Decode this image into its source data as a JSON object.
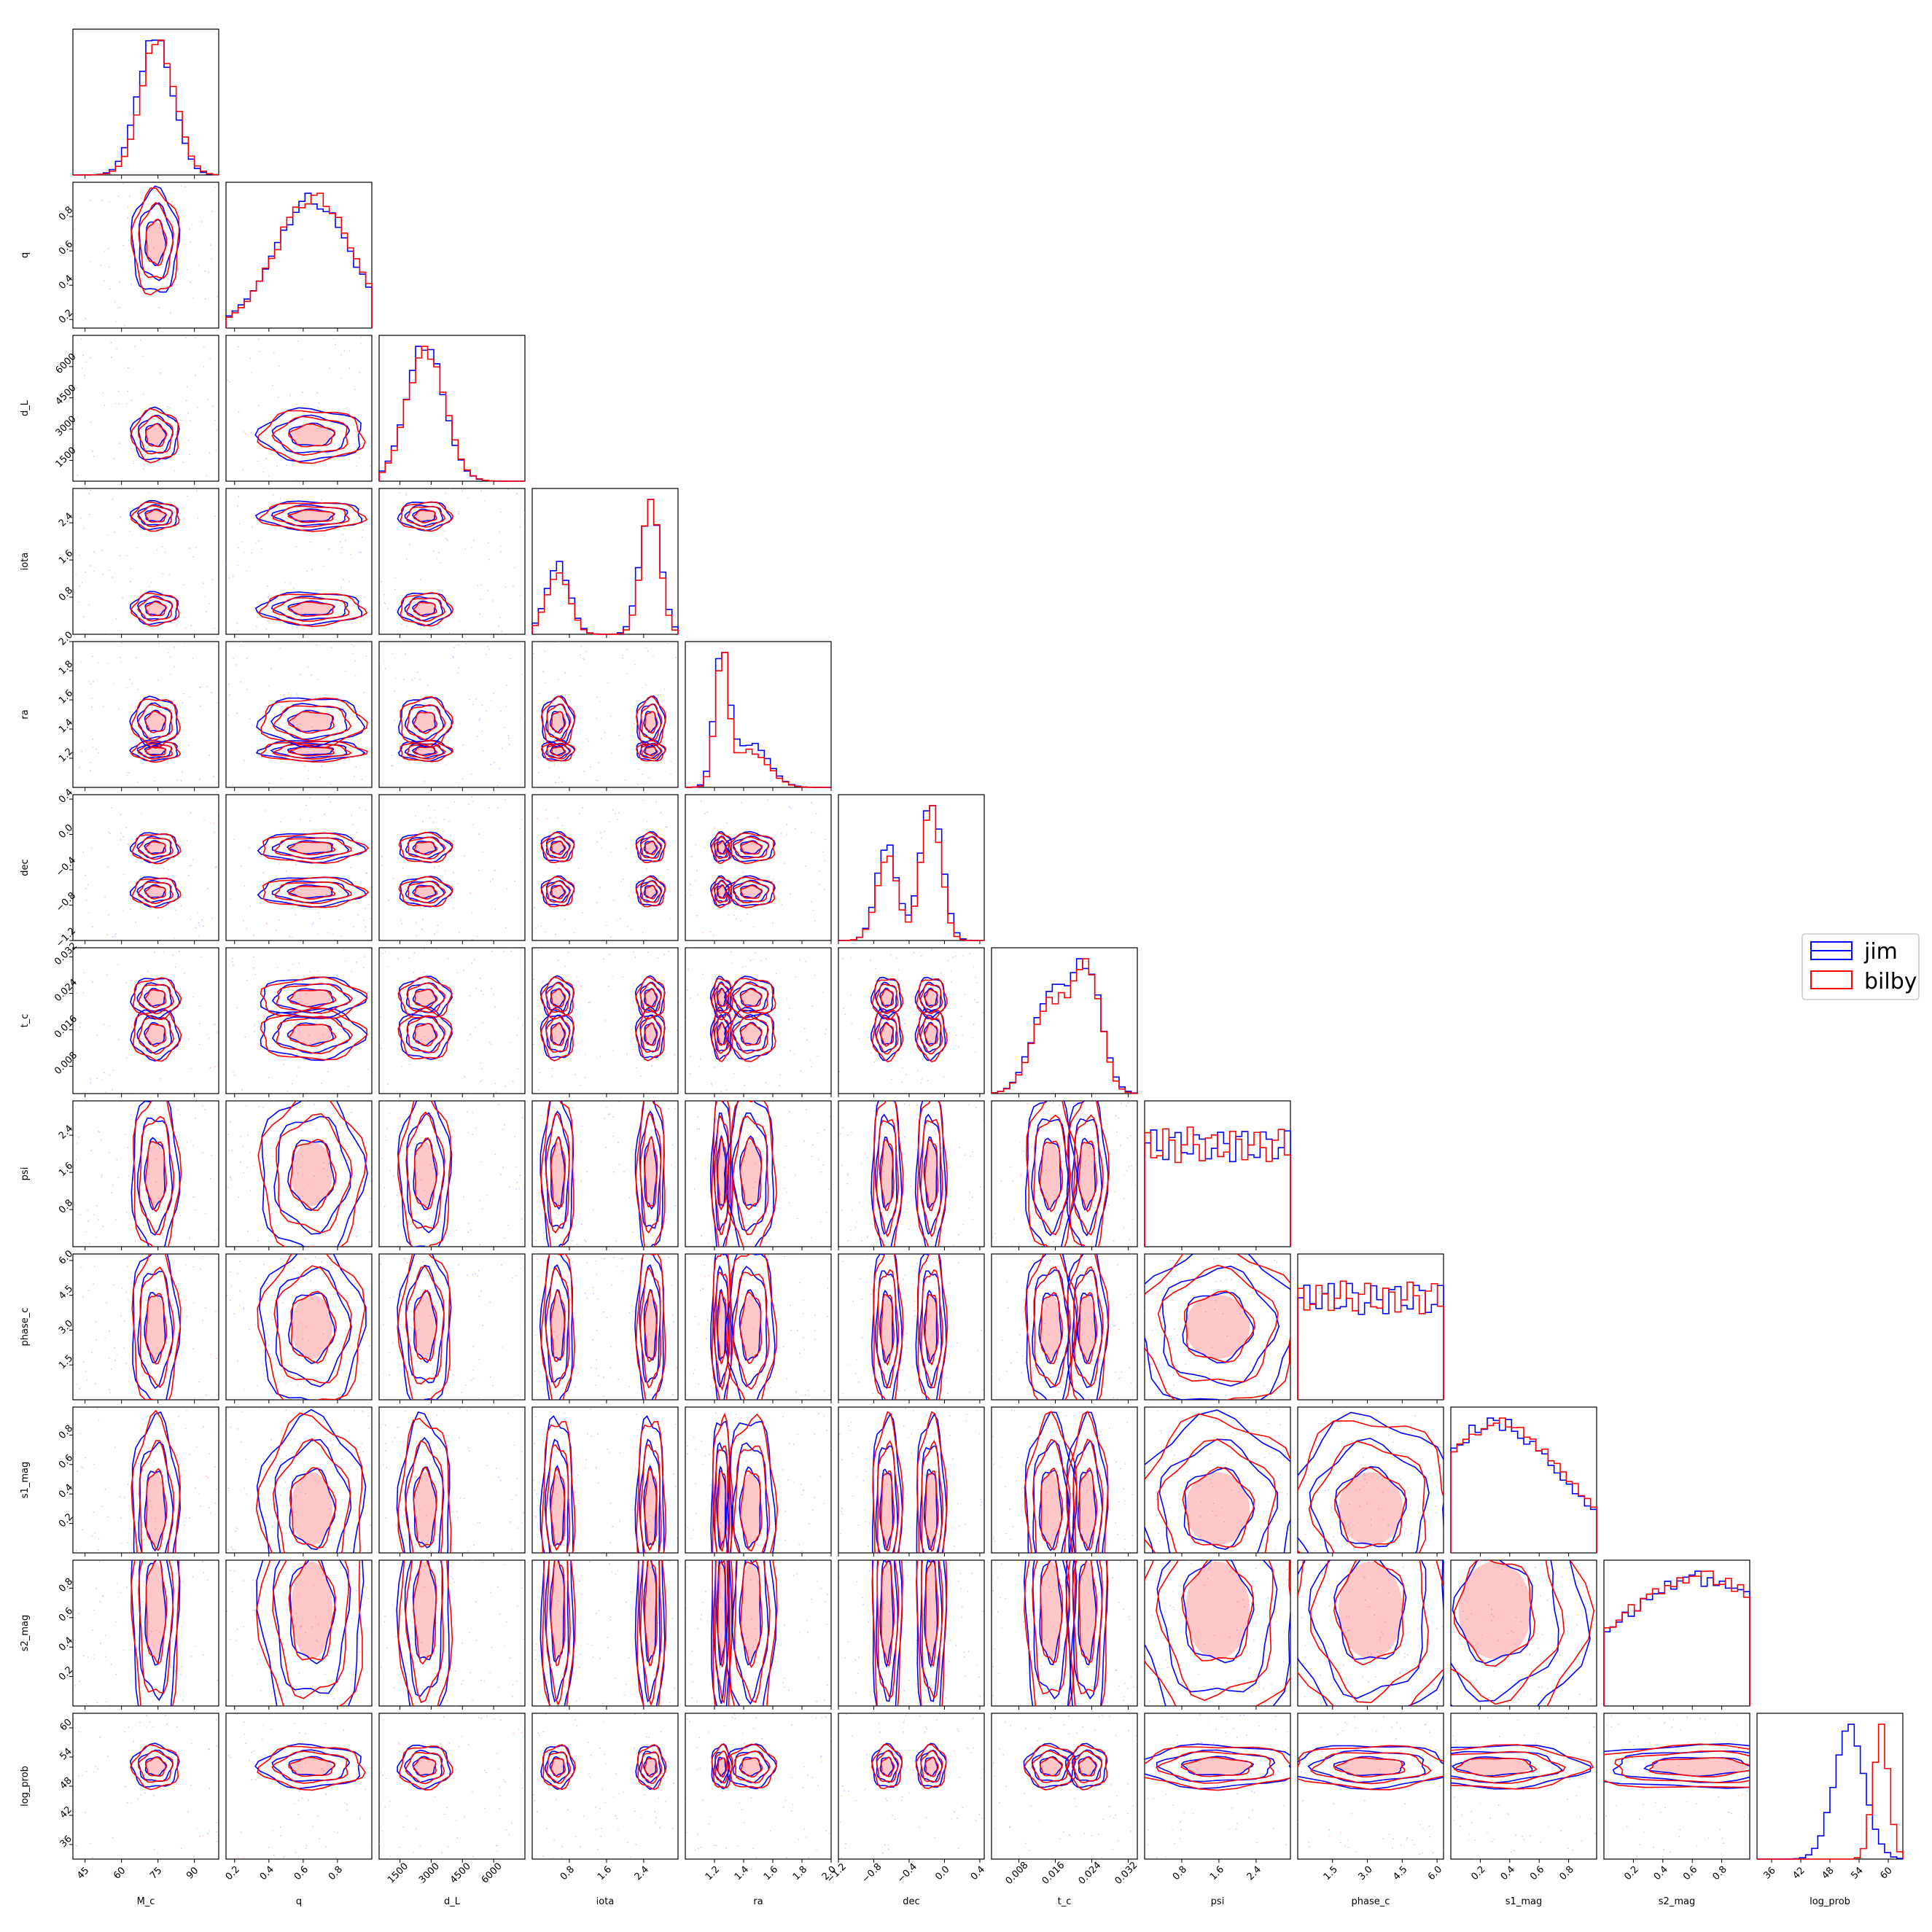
{
  "chart_data": {
    "type": "corner",
    "title": "",
    "legend": {
      "placement": "right",
      "entries": [
        {
          "name": "jim",
          "color": "#0000ff"
        },
        {
          "name": "bilby",
          "color": "#ff0000"
        }
      ]
    },
    "parameters": [
      {
        "name": "M_c",
        "range": [
          40,
          100
        ],
        "ticks": [
          "45",
          "60",
          "75",
          "90"
        ],
        "tickvals": [
          45,
          60,
          75,
          90
        ],
        "modes_a": [
          {
            "mu": 74,
            "sigma": 7,
            "w": 1
          }
        ],
        "modes_b": [
          {
            "mu": 75,
            "sigma": 7,
            "w": 1
          }
        ]
      },
      {
        "name": "q",
        "range": [
          0.15,
          1.0
        ],
        "ticks": [
          "0.2",
          "0.4",
          "0.6",
          "0.8"
        ],
        "tickvals": [
          0.2,
          0.4,
          0.6,
          0.8
        ],
        "modes_a": [
          {
            "mu": 0.65,
            "sigma": 0.22,
            "w": 1
          }
        ],
        "modes_b": [
          {
            "mu": 0.66,
            "sigma": 0.22,
            "w": 1
          }
        ]
      },
      {
        "name": "d_L",
        "range": [
          500,
          7500
        ],
        "ticks": [
          "1500",
          "3000",
          "4500",
          "6000"
        ],
        "tickvals": [
          1500,
          3000,
          4500,
          6000
        ],
        "modes_a": [
          {
            "mu": 2700,
            "sigma": 900,
            "w": 1
          }
        ],
        "modes_b": [
          {
            "mu": 2750,
            "sigma": 900,
            "w": 1
          }
        ]
      },
      {
        "name": "iota",
        "range": [
          0.0,
          3.14
        ],
        "ticks": [
          "0.8",
          "1.6",
          "2.4"
        ],
        "tickvals": [
          0.8,
          1.6,
          2.4
        ],
        "modes_a": [
          {
            "mu": 0.55,
            "sigma": 0.25,
            "w": 0.35
          },
          {
            "mu": 2.55,
            "sigma": 0.22,
            "w": 0.65
          }
        ],
        "modes_b": [
          {
            "mu": 0.55,
            "sigma": 0.25,
            "w": 0.32
          },
          {
            "mu": 2.55,
            "sigma": 0.2,
            "w": 0.68
          }
        ]
      },
      {
        "name": "ra",
        "range": [
          1.0,
          2.0
        ],
        "ticks": [
          "1.2",
          "1.4",
          "1.6",
          "1.8",
          "2.0"
        ],
        "tickvals": [
          1.2,
          1.4,
          1.6,
          1.8,
          2.0
        ],
        "modes_a": [
          {
            "mu": 1.25,
            "sigma": 0.05,
            "w": 0.75
          },
          {
            "mu": 1.45,
            "sigma": 0.12,
            "w": 0.25
          }
        ],
        "modes_b": [
          {
            "mu": 1.25,
            "sigma": 0.045,
            "w": 0.78
          },
          {
            "mu": 1.45,
            "sigma": 0.12,
            "w": 0.22
          }
        ]
      },
      {
        "name": "dec",
        "range": [
          -1.2,
          0.45
        ],
        "ticks": [
          "−1.2",
          "−0.8",
          "−0.4",
          "0.0",
          "0.4"
        ],
        "tickvals": [
          -1.2,
          -0.8,
          -0.4,
          0.0,
          0.4
        ],
        "modes_a": [
          {
            "mu": -0.65,
            "sigma": 0.12,
            "w": 0.4
          },
          {
            "mu": -0.15,
            "sigma": 0.12,
            "w": 0.6
          }
        ],
        "modes_b": [
          {
            "mu": -0.65,
            "sigma": 0.12,
            "w": 0.38
          },
          {
            "mu": -0.15,
            "sigma": 0.11,
            "w": 0.62
          }
        ]
      },
      {
        "name": "t_c",
        "range": [
          0.002,
          0.034
        ],
        "ticks": [
          "0.008",
          "0.016",
          "0.024",
          "0.032"
        ],
        "tickvals": [
          0.008,
          0.016,
          0.024,
          0.032
        ],
        "modes_a": [
          {
            "mu": 0.015,
            "sigma": 0.004,
            "w": 0.45
          },
          {
            "mu": 0.023,
            "sigma": 0.0032,
            "w": 0.55
          }
        ],
        "modes_b": [
          {
            "mu": 0.015,
            "sigma": 0.004,
            "w": 0.42
          },
          {
            "mu": 0.023,
            "sigma": 0.003,
            "w": 0.58
          }
        ]
      },
      {
        "name": "psi",
        "range": [
          0.0,
          3.14
        ],
        "ticks": [
          "0.8",
          "1.6",
          "2.4"
        ],
        "tickvals": [
          0.8,
          1.6,
          2.4
        ],
        "uniform": true
      },
      {
        "name": "phase_c",
        "range": [
          0.0,
          6.28
        ],
        "ticks": [
          "1.5",
          "3.0",
          "4.5",
          "6.0"
        ],
        "tickvals": [
          1.5,
          3.0,
          4.5,
          6.0
        ],
        "uniform": true
      },
      {
        "name": "s1_mag",
        "range": [
          0.0,
          0.99
        ],
        "ticks": [
          "0.2",
          "0.4",
          "0.6",
          "0.8"
        ],
        "tickvals": [
          0.2,
          0.4,
          0.6,
          0.8
        ],
        "modes_a": [
          {
            "mu": 0.3,
            "sigma": 0.45,
            "w": 1
          }
        ],
        "modes_b": [
          {
            "mu": 0.32,
            "sigma": 0.45,
            "w": 1
          }
        ]
      },
      {
        "name": "s2_mag",
        "range": [
          0.0,
          0.99
        ],
        "ticks": [
          "0.2",
          "0.4",
          "0.6",
          "0.8"
        ],
        "tickvals": [
          0.2,
          0.4,
          0.6,
          0.8
        ],
        "modes_a": [
          {
            "mu": 0.65,
            "sigma": 0.6,
            "w": 1
          }
        ],
        "modes_b": [
          {
            "mu": 0.65,
            "sigma": 0.6,
            "w": 1
          }
        ]
      },
      {
        "name": "log_prob",
        "range": [
          33,
          63
        ],
        "ticks": [
          "36",
          "42",
          "48",
          "54",
          "60"
        ],
        "tickvals": [
          36,
          42,
          48,
          54,
          60
        ],
        "modes_a": [
          {
            "mu": 52,
            "sigma": 3.2,
            "w": 1
          }
        ],
        "modes_b": [
          {
            "mu": 58.5,
            "sigma": 1.6,
            "w": 1
          }
        ]
      }
    ],
    "series": [
      {
        "name": "jim",
        "color": "#0000ff"
      },
      {
        "name": "bilby",
        "color": "#ff0000"
      }
    ]
  }
}
